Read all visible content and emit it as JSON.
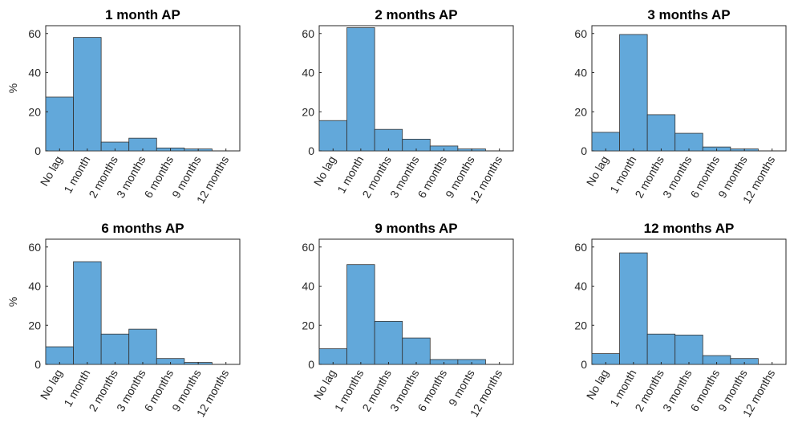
{
  "chart_data": [
    {
      "type": "bar",
      "title": "1 month AP",
      "ylabel": "%",
      "categories": [
        "No lag",
        "1 month",
        "2 months",
        "3 months",
        "6 months",
        "9 months",
        "12 months"
      ],
      "values": [
        27.5,
        58,
        4.5,
        6.5,
        1.5,
        1,
        0
      ],
      "color": "#62a8da",
      "ylim": [
        0,
        64
      ],
      "yticks": [
        0,
        20,
        40,
        60
      ]
    },
    {
      "type": "bar",
      "title": "2 months AP",
      "categories": [
        "No lag",
        "1 month",
        "2 months",
        "3 months",
        "6 months",
        "9 months",
        "12 months"
      ],
      "values": [
        15.5,
        63,
        11,
        6,
        2.5,
        1,
        0
      ],
      "color": "#62a8da",
      "ylim": [
        0,
        64
      ],
      "yticks": [
        0,
        20,
        40,
        60
      ]
    },
    {
      "type": "bar",
      "title": "3 months AP",
      "categories": [
        "No lag",
        "1 month",
        "2 months",
        "3 months",
        "6 months",
        "9 months",
        "12 months"
      ],
      "values": [
        9.5,
        59.5,
        18.5,
        9,
        2,
        1,
        0
      ],
      "color": "#62a8da",
      "ylim": [
        0,
        64
      ],
      "yticks": [
        0,
        20,
        40,
        60
      ]
    },
    {
      "type": "bar",
      "title": "6 months AP",
      "ylabel": "%",
      "categories": [
        "No lag",
        "1 month",
        "2 months",
        "3 months",
        "6 months",
        "9 months",
        "12 months"
      ],
      "values": [
        9,
        52.5,
        15.5,
        18,
        3,
        1,
        0
      ],
      "color": "#62a8da",
      "ylim": [
        0,
        64
      ],
      "yticks": [
        0,
        20,
        40,
        60
      ]
    },
    {
      "type": "bar",
      "title": "9 months AP",
      "categories": [
        "No lag",
        "1 months",
        "2 months",
        "3 months",
        "6 months",
        "9 monts",
        "12 months"
      ],
      "values": [
        8,
        51,
        22,
        13.5,
        2.5,
        2.5,
        0
      ],
      "color": "#62a8da",
      "ylim": [
        0,
        64
      ],
      "yticks": [
        0,
        20,
        40,
        60
      ]
    },
    {
      "type": "bar",
      "title": "12 months AP",
      "categories": [
        "No lag",
        "1 month",
        "2 months",
        "3 months",
        "6 months",
        "9 months",
        "12 months"
      ],
      "values": [
        5.5,
        57,
        15.5,
        15,
        4.5,
        3,
        0
      ],
      "color": "#62a8da",
      "ylim": [
        0,
        64
      ],
      "yticks": [
        0,
        20,
        40,
        60
      ]
    }
  ]
}
